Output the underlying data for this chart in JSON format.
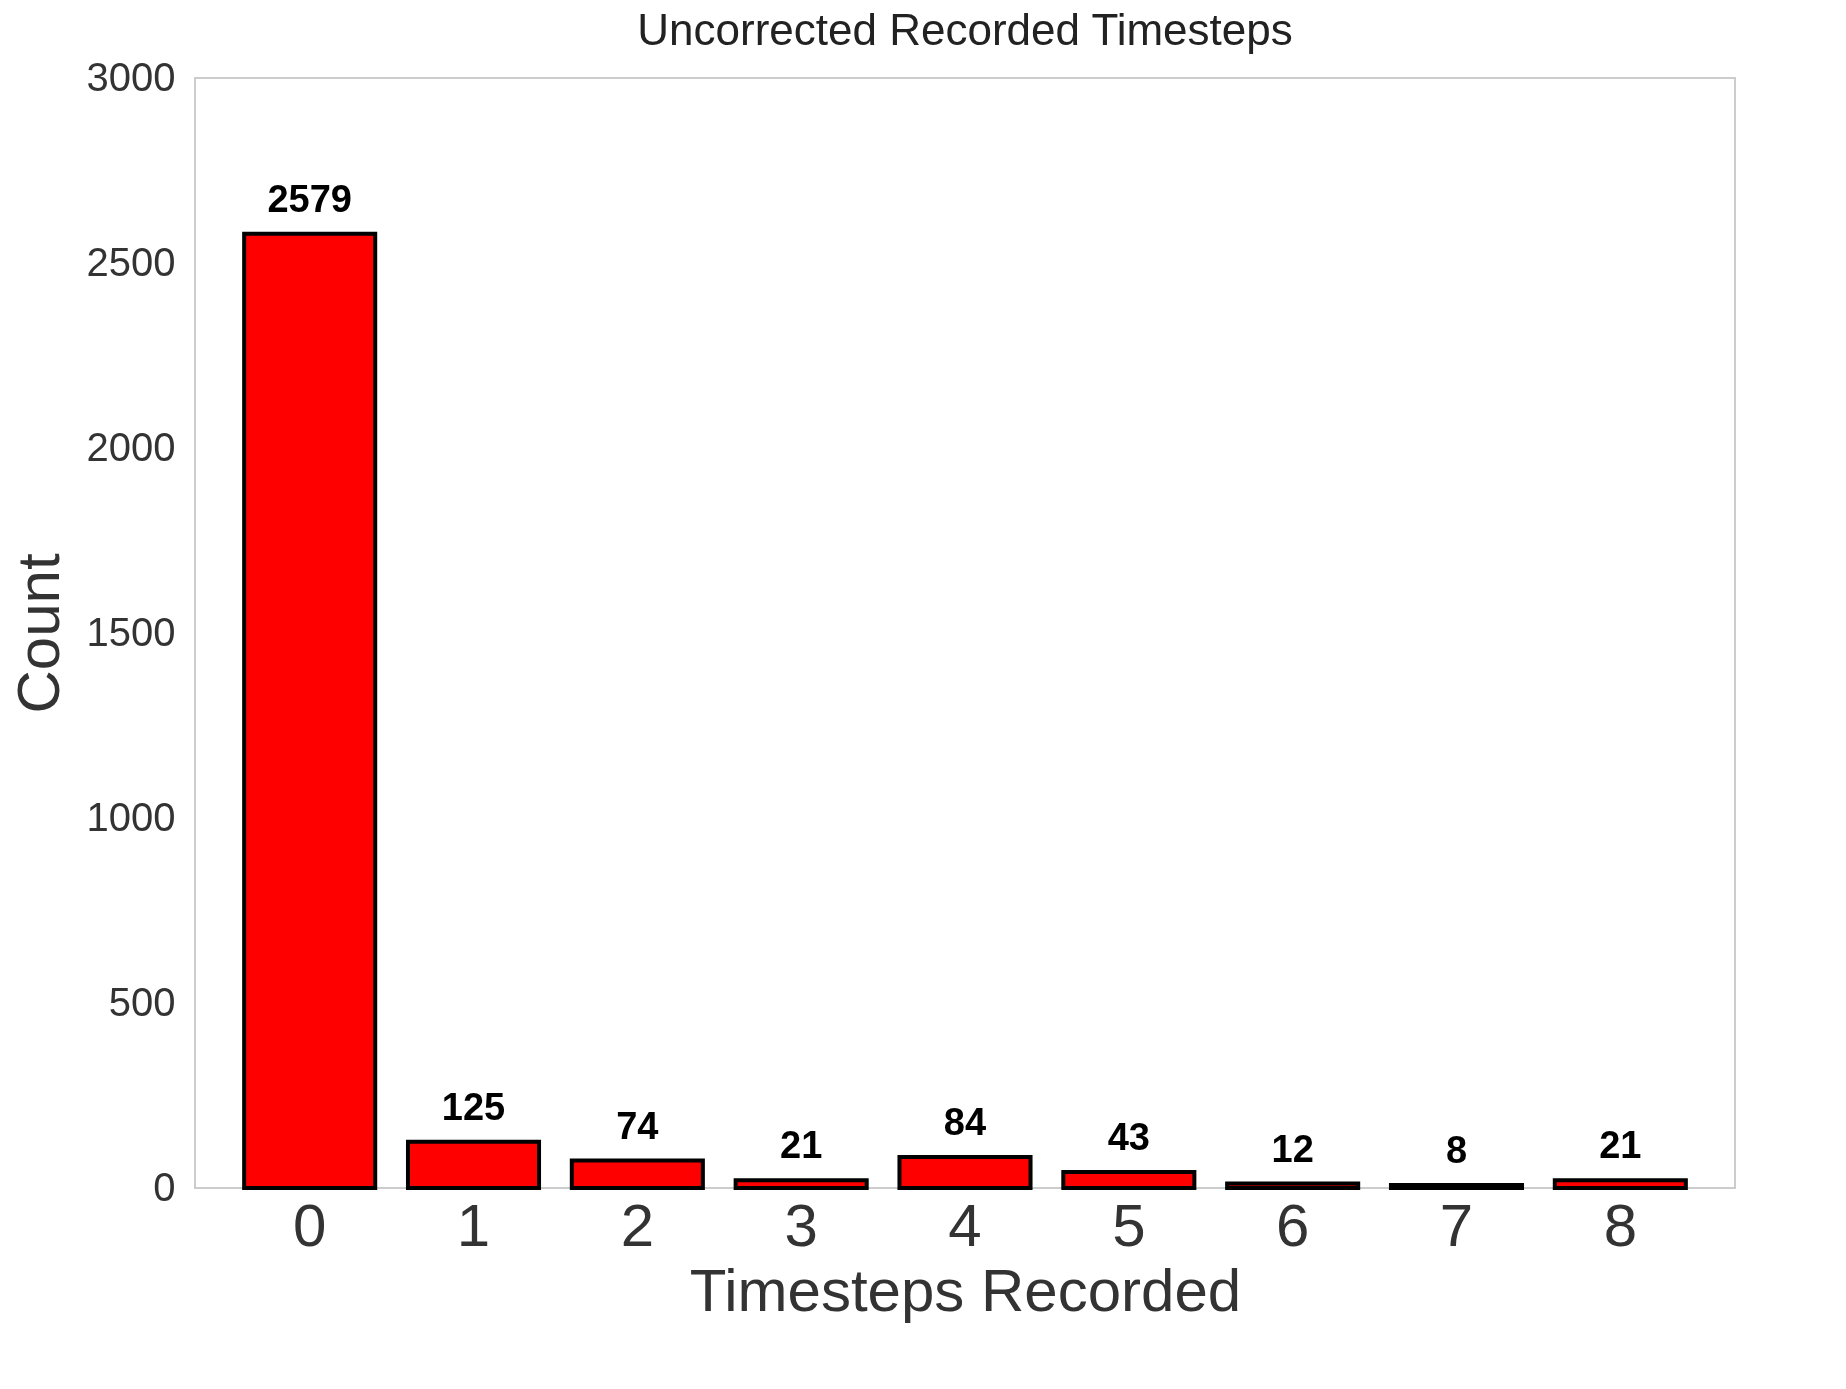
{
  "chart_data": {
    "type": "bar",
    "title": "Uncorrected Recorded Timesteps",
    "xlabel": "Timesteps Recorded",
    "ylabel": "Count",
    "categories": [
      "0",
      "1",
      "2",
      "3",
      "4",
      "5",
      "6",
      "7",
      "8"
    ],
    "values": [
      2579,
      125,
      74,
      21,
      84,
      43,
      12,
      8,
      21
    ],
    "color": "#ff0000",
    "ylim": [
      0,
      3000
    ],
    "yticks": [
      0,
      500,
      1000,
      1500,
      2000,
      2500,
      3000
    ],
    "grid": false,
    "data_labels": true
  }
}
